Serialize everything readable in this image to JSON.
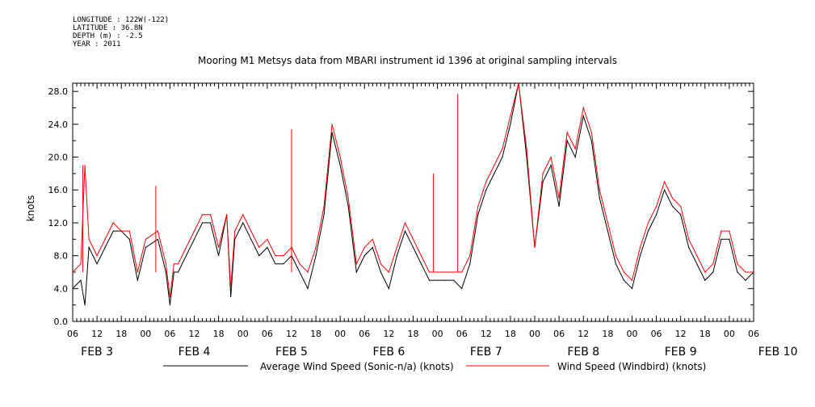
{
  "header": {
    "longitude": "LONGITUDE : 122W(-122)",
    "latitude": "LATITUDE : 36.8N",
    "depth": "DEPTH (m) : -2.5",
    "year": "YEAR : 2011"
  },
  "chart_data": {
    "type": "line",
    "title": "Mooring M1 Metsys data from MBARI instrument id 1396 at original sampling intervals",
    "ylabel": "knots",
    "xlabel": "",
    "ylim": [
      0,
      29
    ],
    "yticks": [
      "0.0",
      "4.0",
      "8.0",
      "12.0",
      "16.0",
      "20.0",
      "24.0",
      "28.0"
    ],
    "xlim_hours": [
      6,
      174
    ],
    "x_tick_labels": [
      "06",
      "12",
      "18",
      "00",
      "06",
      "12",
      "18",
      "00",
      "06",
      "12",
      "18",
      "00",
      "06",
      "12",
      "18",
      "00",
      "06",
      "12",
      "18",
      "00",
      "06",
      "12",
      "18",
      "00",
      "06",
      "12",
      "18",
      "00",
      "06"
    ],
    "date_labels": [
      "FEB 3",
      "FEB 4",
      "FEB 5",
      "FEB 6",
      "FEB 7",
      "FEB 8",
      "FEB 9",
      "FEB 10"
    ],
    "grid": false,
    "legend_position": "bottom",
    "series": [
      {
        "name": "Average Wind Speed (Sonic-n/a) (knots)",
        "color": "#000000",
        "x": [
          6,
          8,
          9,
          10,
          11,
          12,
          14,
          16,
          18,
          20,
          22,
          24,
          27,
          29,
          30,
          31,
          32,
          34,
          36,
          38,
          40,
          42,
          44,
          45,
          46,
          48,
          50,
          52,
          54,
          56,
          58,
          60,
          62,
          64,
          66,
          68,
          70,
          72,
          74,
          76,
          78,
          80,
          82,
          84,
          86,
          88,
          90,
          92,
          94,
          96,
          98,
          100,
          102,
          104,
          106,
          108,
          110,
          112,
          114,
          116,
          118,
          120,
          122,
          124,
          126,
          128,
          130,
          132,
          134,
          136,
          138,
          140,
          142,
          144,
          146,
          148,
          150,
          152,
          154,
          156,
          158,
          160,
          162,
          164,
          166,
          168,
          170,
          172,
          174
        ],
        "y": [
          4,
          5,
          2,
          9,
          8,
          7,
          9,
          11,
          11,
          10,
          5,
          9,
          10,
          6,
          2,
          6,
          6,
          8,
          10,
          12,
          12,
          8,
          13,
          3,
          10,
          12,
          10,
          8,
          9,
          7,
          7,
          8,
          6,
          4,
          8,
          13,
          23,
          19,
          14,
          6,
          8,
          9,
          6,
          4,
          8,
          11,
          9,
          7,
          5,
          5,
          5,
          5,
          4,
          7,
          13,
          16,
          18,
          20,
          24,
          29,
          20,
          9,
          17,
          19,
          14,
          22,
          20,
          25,
          22,
          15,
          11,
          7,
          5,
          4,
          8,
          11,
          13,
          16,
          14,
          13,
          9,
          7,
          5,
          6,
          10,
          10,
          6,
          5,
          6
        ],
        "interpolated": false
      },
      {
        "name": "Wind Speed (Windbird) (knots)",
        "color": "#ff0000",
        "x": [
          6,
          8,
          9,
          10,
          11,
          12,
          14,
          16,
          18,
          20,
          22,
          24,
          27,
          29,
          30,
          31,
          32,
          34,
          36,
          38,
          40,
          42,
          44,
          45,
          46,
          48,
          50,
          52,
          54,
          56,
          58,
          60,
          62,
          64,
          66,
          68,
          70,
          72,
          74,
          76,
          78,
          80,
          82,
          84,
          86,
          88,
          90,
          92,
          94,
          96,
          98,
          100,
          102,
          104,
          106,
          108,
          110,
          112,
          114,
          116,
          118,
          120,
          122,
          124,
          126,
          128,
          130,
          132,
          134,
          136,
          138,
          140,
          142,
          144,
          146,
          148,
          150,
          152,
          154,
          156,
          158,
          160,
          162,
          164,
          166,
          168,
          170,
          172,
          174
        ],
        "y": [
          6,
          7,
          19,
          10,
          9,
          8,
          10,
          12,
          11,
          11,
          6,
          10,
          11,
          7,
          3,
          7,
          7,
          9,
          11,
          13,
          13,
          9,
          13,
          4,
          11,
          13,
          11,
          9,
          10,
          8,
          8,
          9,
          7,
          6,
          9,
          14,
          24,
          20,
          15,
          7,
          9,
          10,
          7,
          6,
          9,
          12,
          10,
          8,
          6,
          6,
          6,
          6,
          6,
          8,
          14,
          17,
          19,
          21,
          25,
          29,
          21,
          9,
          18,
          20,
          15,
          23,
          21,
          26,
          23,
          16,
          12,
          8,
          6,
          5,
          9,
          12,
          14,
          17,
          15,
          14,
          10,
          8,
          6,
          7,
          11,
          11,
          7,
          6,
          6
        ],
        "spikes": [
          [
            8.5,
            19
          ],
          [
            26.5,
            16.5
          ],
          [
            101,
            27.7
          ],
          [
            95,
            18
          ],
          [
            60,
            23.4
          ]
        ],
        "interpolated": false
      }
    ]
  }
}
